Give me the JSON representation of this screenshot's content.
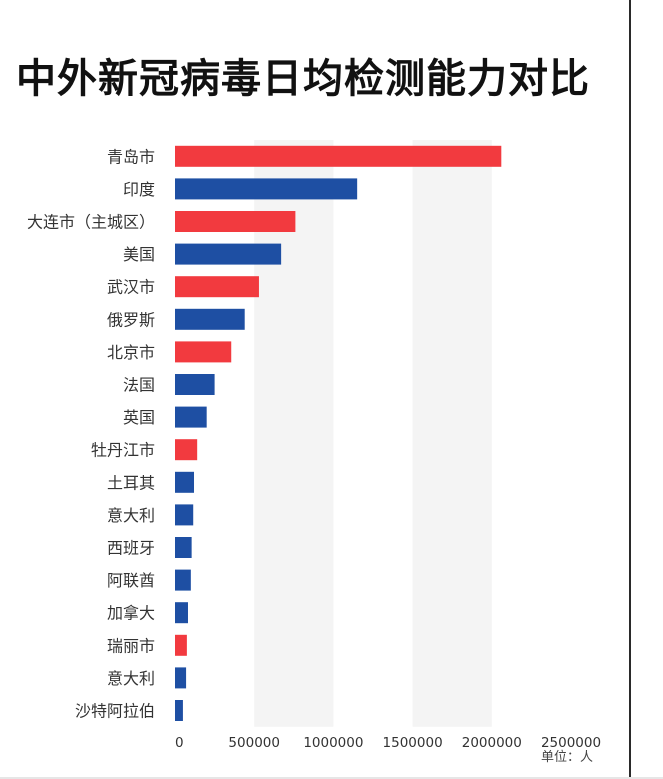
{
  "title": "中外新冠病毒日均检测能力对比",
  "unit_note": "单位：人",
  "colors": {
    "china": "#f23a3f",
    "foreign": "#1e4fa3",
    "band": "#f4f4f4",
    "text": "#333333",
    "title": "#111111"
  },
  "chart_data": {
    "type": "bar",
    "orientation": "horizontal",
    "title": "中外新冠病毒日均检测能力对比",
    "xlabel": "",
    "ylabel": "",
    "xlim": [
      0,
      2500000
    ],
    "x_ticks": [
      0,
      500000,
      1000000,
      1500000,
      2000000,
      2500000
    ],
    "x_tick_labels": [
      "0",
      "500000",
      "1000000",
      "1500000",
      "2000000",
      "2500000"
    ],
    "grid": "alternating vertical bands",
    "categories": [
      "青岛市",
      "印度",
      "大连市（主城区）",
      "美国",
      "武汉市",
      "俄罗斯",
      "北京市",
      "法国",
      "英国",
      "牡丹江市",
      "土耳其",
      "意大利",
      "西班牙",
      "阿联酋",
      "加拿大",
      "瑞丽市",
      "意大利",
      "沙特阿拉伯"
    ],
    "values": [
      2060000,
      1150000,
      760000,
      670000,
      530000,
      440000,
      355000,
      250000,
      200000,
      140000,
      120000,
      115000,
      105000,
      100000,
      82000,
      75000,
      70000,
      50000
    ],
    "bar_colors": [
      "#f23a3f",
      "#1e4fa3",
      "#f23a3f",
      "#1e4fa3",
      "#f23a3f",
      "#1e4fa3",
      "#f23a3f",
      "#1e4fa3",
      "#1e4fa3",
      "#f23a3f",
      "#1e4fa3",
      "#1e4fa3",
      "#1e4fa3",
      "#1e4fa3",
      "#1e4fa3",
      "#f23a3f",
      "#1e4fa3",
      "#1e4fa3"
    ],
    "legend": "none"
  }
}
